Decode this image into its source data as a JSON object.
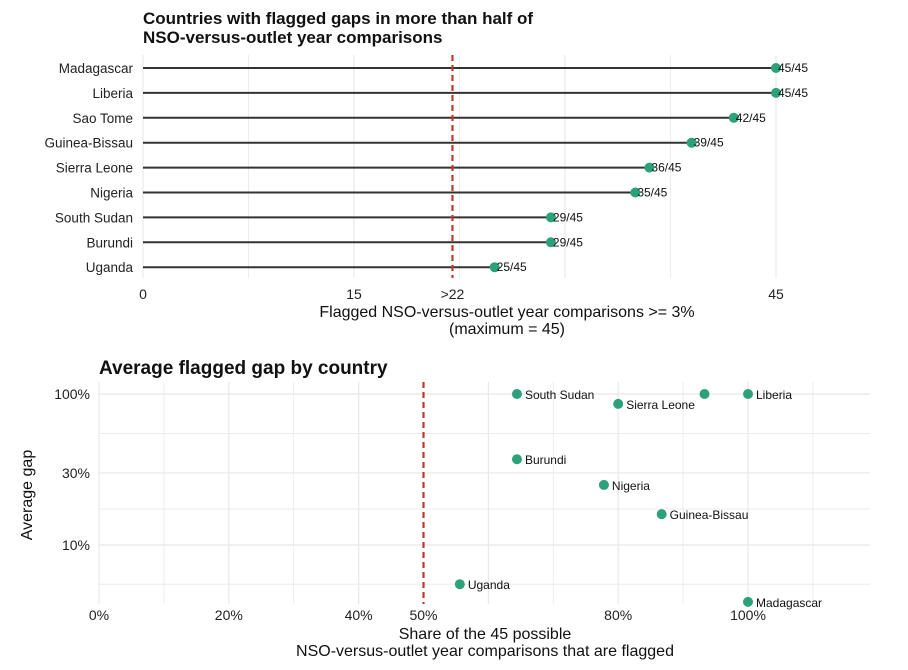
{
  "colors": {
    "point": "#2ca27a",
    "reference_line": "#c0392b",
    "segment": "#333333",
    "grid": "#e8e8e8"
  },
  "chart_data": [
    {
      "type": "lollipop",
      "title": "Countries with flagged gaps in more than half of",
      "title_line2": "NSO-versus-outlet year comparisons",
      "xlabel": "Flagged NSO-versus-outlet year comparisons >= 3%",
      "xlabel_line2": "(maximum = 45)",
      "ylabel": "",
      "xlim": [
        0,
        45
      ],
      "x_ticks": [
        {
          "value": 0,
          "label": "0"
        },
        {
          "value": 15,
          "label": "15"
        },
        {
          "value": 22,
          "label": ">22"
        },
        {
          "value": 45,
          "label": "45"
        }
      ],
      "reference_line": {
        "value": 22
      },
      "categories": [
        "Madagascar",
        "Liberia",
        "Sao Tome",
        "Guinea-Bissau",
        "Sierra Leone",
        "Nigeria",
        "South Sudan",
        "Burundi",
        "Uganda"
      ],
      "values": [
        45,
        45,
        42,
        39,
        36,
        35,
        29,
        29,
        25
      ],
      "data_labels": [
        "45/45",
        "45/45",
        "42/45",
        "39/45",
        "36/45",
        "35/45",
        "29/45",
        "29/45",
        "25/45"
      ],
      "grid": "vertical"
    },
    {
      "type": "scatter",
      "title": "Average flagged gap by country",
      "xlabel": "Share of the 45 possible",
      "xlabel_line2": "NSO-versus-outlet year comparisons that are flagged",
      "ylabel": "Average gap",
      "x_scale": "linear",
      "y_scale": "log",
      "xlim": [
        0,
        1.19
      ],
      "ylim": [
        3.8,
        130
      ],
      "x_ticks": [
        {
          "value": 0,
          "label": "0%"
        },
        {
          "value": 0.2,
          "label": "20%"
        },
        {
          "value": 0.4,
          "label": "40%"
        },
        {
          "value": 0.5,
          "label": "50%"
        },
        {
          "value": 0.8,
          "label": "80%"
        },
        {
          "value": 1.0,
          "label": "100%"
        }
      ],
      "y_ticks": [
        {
          "value": 10,
          "label": "10%"
        },
        {
          "value": 30,
          "label": "30%"
        },
        {
          "value": 100,
          "label": "100%"
        }
      ],
      "reference_line": {
        "value": 0.5
      },
      "points": [
        {
          "label": "South Sudan",
          "x": 0.644,
          "y": 100
        },
        {
          "label": "",
          "x": 0.933,
          "y": 100
        },
        {
          "label": "Liberia",
          "x": 1.0,
          "y": 100
        },
        {
          "label": "Sierra Leone",
          "x": 0.8,
          "y": 86
        },
        {
          "label": "Burundi",
          "x": 0.644,
          "y": 37
        },
        {
          "label": "Nigeria",
          "x": 0.778,
          "y": 25
        },
        {
          "label": "Guinea-Bissau",
          "x": 0.867,
          "y": 16
        },
        {
          "label": "Uganda",
          "x": 0.556,
          "y": 5.5
        },
        {
          "label": "Madagascar",
          "x": 1.0,
          "y": 4.2
        }
      ],
      "grid": "both"
    }
  ]
}
